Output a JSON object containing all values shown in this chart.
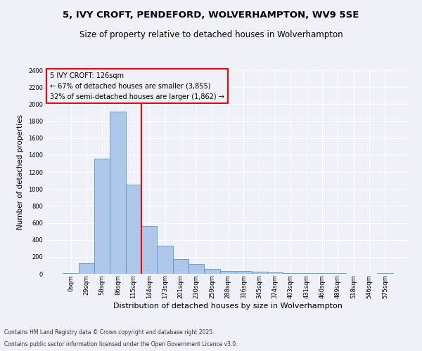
{
  "title1": "5, IVY CROFT, PENDEFORD, WOLVERHAMPTON, WV9 5SE",
  "title2": "Size of property relative to detached houses in Wolverhampton",
  "xlabel": "Distribution of detached houses by size in Wolverhampton",
  "ylabel": "Number of detached properties",
  "footnote1": "Contains HM Land Registry data © Crown copyright and database right 2025.",
  "footnote2": "Contains public sector information licensed under the Open Government Licence v3.0.",
  "bar_labels": [
    "0sqm",
    "29sqm",
    "58sqm",
    "86sqm",
    "115sqm",
    "144sqm",
    "173sqm",
    "201sqm",
    "230sqm",
    "259sqm",
    "288sqm",
    "316sqm",
    "345sqm",
    "374sqm",
    "403sqm",
    "431sqm",
    "460sqm",
    "489sqm",
    "518sqm",
    "546sqm",
    "575sqm"
  ],
  "bar_values": [
    10,
    125,
    1360,
    1910,
    1055,
    560,
    335,
    170,
    115,
    60,
    35,
    30,
    25,
    15,
    5,
    5,
    5,
    5,
    0,
    0,
    10
  ],
  "bar_color": "#aec6e8",
  "bar_edgecolor": "#5a96c8",
  "vline_color": "red",
  "annotation_title": "5 IVY CROFT: 126sqm",
  "annotation_line1": "← 67% of detached houses are smaller (3,855)",
  "annotation_line2": "32% of semi-detached houses are larger (1,862) →",
  "annotation_box_color": "red",
  "ylim_max": 2400,
  "yticks": [
    0,
    200,
    400,
    600,
    800,
    1000,
    1200,
    1400,
    1600,
    1800,
    2000,
    2200,
    2400
  ],
  "background_color": "#eef2f8",
  "grid_color": "white",
  "title1_fontsize": 9.5,
  "title2_fontsize": 8.5,
  "xlabel_fontsize": 8,
  "ylabel_fontsize": 7.5,
  "tick_fontsize": 6,
  "footnote_fontsize": 5.5,
  "annot_fontsize": 7
}
